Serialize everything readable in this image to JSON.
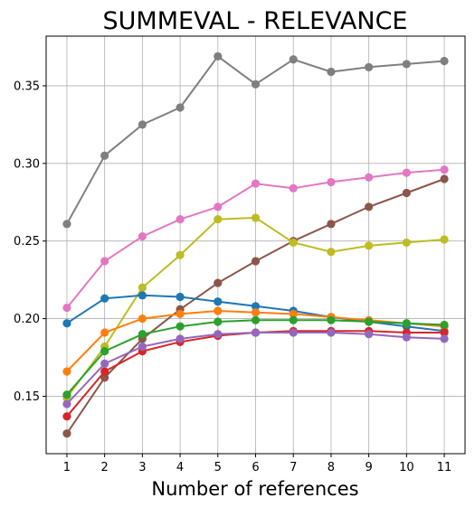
{
  "chart_data": {
    "type": "line",
    "title": "SUMMEVAL - RELEVANCE",
    "xlabel": "Number of references",
    "ylabel": "",
    "categories": [
      1,
      2,
      3,
      4,
      5,
      6,
      7,
      8,
      9,
      10,
      11
    ],
    "xlim": [
      0.45,
      11.55
    ],
    "ylim": [
      0.113,
      0.382
    ],
    "y_ticks": [
      0.15,
      0.2,
      0.25,
      0.3,
      0.35
    ],
    "y_tick_labels": [
      "0.15",
      "0.20",
      "0.25",
      "0.30",
      "0.35"
    ],
    "grid": true,
    "series": [
      {
        "color": "#7f7f7f",
        "values": [
          0.261,
          0.305,
          0.325,
          0.336,
          0.369,
          0.351,
          0.367,
          0.359,
          0.362,
          0.364,
          0.366
        ]
      },
      {
        "color": "#e377c2",
        "values": [
          0.207,
          0.237,
          0.253,
          0.264,
          0.272,
          0.287,
          0.284,
          0.288,
          0.291,
          0.294,
          0.296
        ]
      },
      {
        "color": "#8c564b",
        "values": [
          0.126,
          0.162,
          0.187,
          0.206,
          0.223,
          0.237,
          0.25,
          0.261,
          0.272,
          0.281,
          0.29
        ]
      },
      {
        "color": "#bcbd22",
        "values": [
          0.149,
          0.182,
          0.22,
          0.241,
          0.264,
          0.265,
          0.249,
          0.243,
          0.247,
          0.249,
          0.251
        ]
      },
      {
        "color": "#1f77b4",
        "values": [
          0.197,
          0.213,
          0.215,
          0.214,
          0.211,
          0.208,
          0.205,
          0.201,
          0.198,
          0.195,
          0.192
        ]
      },
      {
        "color": "#ff7f0e",
        "values": [
          0.166,
          0.191,
          0.2,
          0.203,
          0.205,
          0.204,
          0.203,
          0.201,
          0.199,
          0.197,
          0.195
        ]
      },
      {
        "color": "#2ca02c",
        "values": [
          0.151,
          0.179,
          0.19,
          0.195,
          0.198,
          0.199,
          0.199,
          0.199,
          0.198,
          0.197,
          0.196
        ]
      },
      {
        "color": "#d62728",
        "values": [
          0.137,
          0.166,
          0.179,
          0.185,
          0.189,
          0.191,
          0.192,
          0.192,
          0.192,
          0.191,
          0.191
        ]
      },
      {
        "color": "#9467bd",
        "values": [
          0.145,
          0.171,
          0.182,
          0.187,
          0.19,
          0.191,
          0.191,
          0.191,
          0.19,
          0.188,
          0.187
        ]
      }
    ]
  }
}
